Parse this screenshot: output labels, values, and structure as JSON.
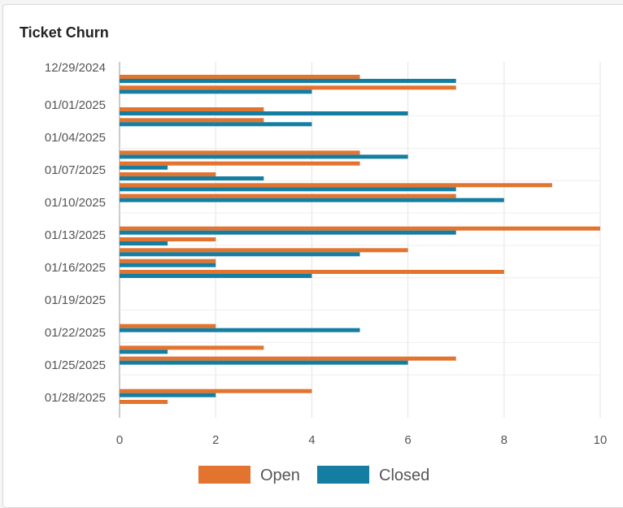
{
  "card": {
    "title": "Ticket Churn"
  },
  "chart_data": {
    "type": "bar",
    "orientation": "horizontal",
    "title": "Ticket Churn",
    "xlabel": "",
    "ylabel": "",
    "xlim": [
      0,
      10
    ],
    "x_ticks": [
      0,
      2,
      4,
      6,
      8,
      10
    ],
    "grid": true,
    "legend": {
      "position": "bottom"
    },
    "y_tick_labels": [
      "12/29/2024",
      "01/01/2025",
      "01/04/2025",
      "01/07/2025",
      "01/10/2025",
      "01/13/2025",
      "01/16/2025",
      "01/19/2025",
      "01/22/2025",
      "01/25/2025",
      "01/28/2025"
    ],
    "categories": [
      "12/29/2024",
      "12/30/2024",
      "12/31/2024",
      "01/01/2025",
      "01/02/2025",
      "01/03/2025",
      "01/04/2025",
      "01/05/2025",
      "01/06/2025",
      "01/07/2025",
      "01/08/2025",
      "01/09/2025",
      "01/10/2025",
      "01/11/2025",
      "01/12/2025",
      "01/13/2025",
      "01/14/2025",
      "01/15/2025",
      "01/16/2025",
      "01/17/2025",
      "01/18/2025",
      "01/19/2025",
      "01/20/2025",
      "01/21/2025",
      "01/22/2025",
      "01/23/2025",
      "01/24/2025",
      "01/25/2025",
      "01/26/2025",
      "01/27/2025",
      "01/28/2025"
    ],
    "series": [
      {
        "name": "Open",
        "color": "#e2742f",
        "values": [
          5,
          7,
          0,
          3,
          3,
          0,
          0,
          5,
          5,
          2,
          9,
          7,
          0,
          0,
          10,
          2,
          6,
          2,
          8,
          0,
          0,
          0,
          0,
          2,
          0,
          3,
          7,
          0,
          0,
          4,
          1
        ]
      },
      {
        "name": "Closed",
        "color": "#137ea1",
        "values": [
          7,
          4,
          0,
          6,
          4,
          0,
          0,
          6,
          1,
          3,
          7,
          8,
          0,
          0,
          7,
          1,
          5,
          2,
          4,
          0,
          0,
          0,
          0,
          5,
          0,
          1,
          6,
          0,
          0,
          2,
          0
        ]
      }
    ]
  }
}
